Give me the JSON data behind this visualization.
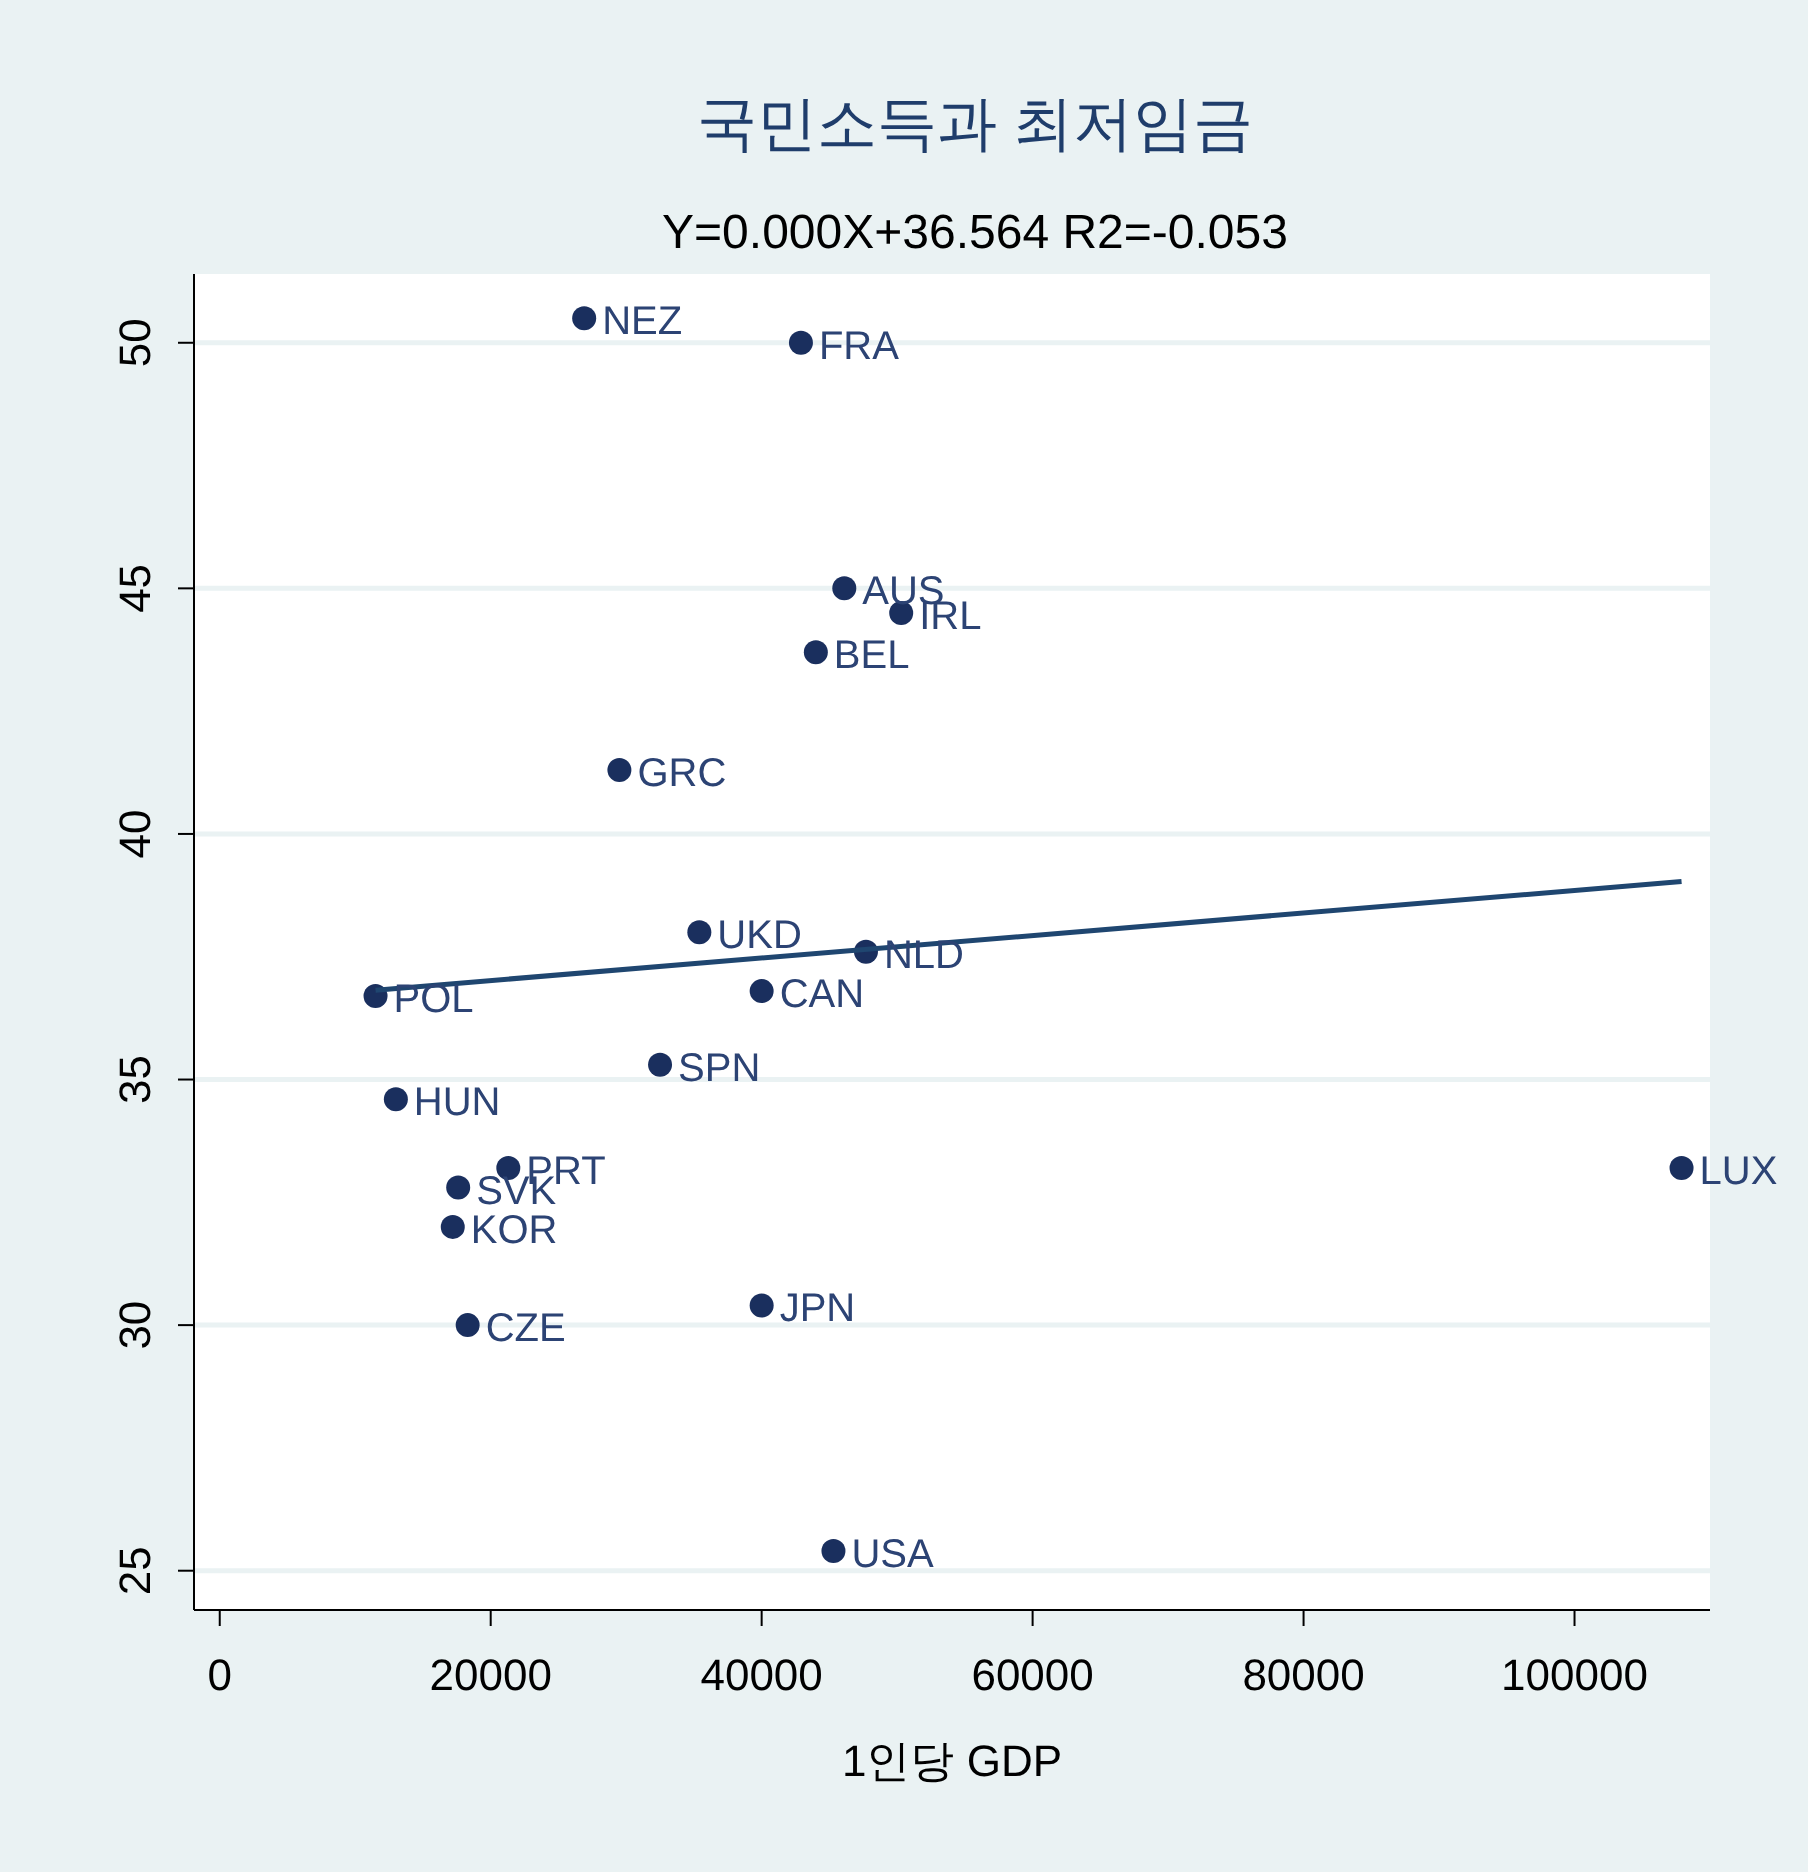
{
  "chart_data": {
    "type": "scatter",
    "title": "국민소득과 최저임금",
    "subtitle": "Y=0.000X+36.564 R2=-0.053",
    "xlabel": "1인당 GDP",
    "xlim": [
      -1900,
      110000
    ],
    "ylim": [
      24.2,
      51.4
    ],
    "xticks": [
      0,
      20000,
      40000,
      60000,
      80000,
      100000
    ],
    "yticks": [
      25,
      30,
      35,
      40,
      45,
      50
    ],
    "grid": "y",
    "series": [
      {
        "marker": "circle",
        "color": "#1a2f5e",
        "x": [
          26900,
          42900,
          46100,
          50300,
          44000,
          29500,
          35400,
          47700,
          40000,
          11500,
          32500,
          13000,
          21300,
          17600,
          17200,
          18300,
          40000,
          45300,
          107900
        ],
        "values": [
          50.5,
          50.0,
          45.0,
          44.5,
          43.7,
          41.3,
          38.0,
          37.6,
          36.8,
          36.7,
          35.3,
          34.6,
          33.2,
          32.8,
          32.0,
          30.0,
          30.4,
          25.4,
          33.2
        ]
      },
      {
        "type": "line",
        "color": "#1f4670",
        "x": [
          11500,
          107900
        ],
        "values": [
          36.82,
          39.03
        ]
      }
    ],
    "annotations": [
      {
        "text": "NEZ",
        "x": 26900,
        "y": 50.5
      },
      {
        "text": "FRA",
        "x": 42900,
        "y": 50.0
      },
      {
        "text": "AUS",
        "x": 46100,
        "y": 45.0
      },
      {
        "text": "IRL",
        "x": 50300,
        "y": 44.5
      },
      {
        "text": "BEL",
        "x": 44000,
        "y": 43.7
      },
      {
        "text": "GRC",
        "x": 29500,
        "y": 41.3
      },
      {
        "text": "UKD",
        "x": 35400,
        "y": 38.0
      },
      {
        "text": "NLD",
        "x": 47700,
        "y": 37.6
      },
      {
        "text": "CAN",
        "x": 40000,
        "y": 36.8
      },
      {
        "text": "POL",
        "x": 11500,
        "y": 36.7
      },
      {
        "text": "SPN",
        "x": 32500,
        "y": 35.3
      },
      {
        "text": "HUN",
        "x": 13000,
        "y": 34.6
      },
      {
        "text": "PRT",
        "x": 21300,
        "y": 33.2
      },
      {
        "text": "SVK",
        "x": 17600,
        "y": 32.8
      },
      {
        "text": "KOR",
        "x": 17200,
        "y": 32.0
      },
      {
        "text": "CZE",
        "x": 18300,
        "y": 30.0
      },
      {
        "text": "JPN",
        "x": 40000,
        "y": 30.4
      },
      {
        "text": "USA",
        "x": 45300,
        "y": 25.4
      },
      {
        "text": "LUX",
        "x": 107900,
        "y": 33.2
      }
    ]
  }
}
